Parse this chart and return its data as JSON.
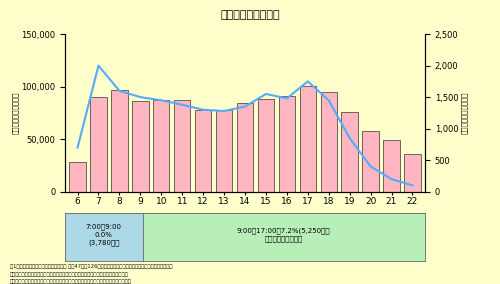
{
  "title": "交通需要と超過需要",
  "background_color": "#FFFFCC",
  "hours": [
    6,
    7,
    8,
    9,
    10,
    11,
    12,
    13,
    14,
    15,
    16,
    17,
    18,
    19,
    20,
    21,
    22
  ],
  "bar_values": [
    28000,
    90000,
    97000,
    86000,
    87000,
    87000,
    78000,
    78000,
    84000,
    88000,
    91000,
    101000,
    95000,
    76000,
    58000,
    49000,
    36000
  ],
  "line_values": [
    700,
    2000,
    1600,
    1500,
    1450,
    1380,
    1300,
    1280,
    1350,
    1550,
    1480,
    1750,
    1450,
    850,
    400,
    200,
    100
  ],
  "bar_color": "#FFB6C1",
  "bar_edge_color": "#333333",
  "line_color": "#55AAFF",
  "ylim_left": [
    0,
    150000
  ],
  "ylim_right": [
    0,
    2500
  ],
  "ylabel_left": "交通需要量（台／時）",
  "ylabel_right": "超過需要量（台／時）",
  "yticks_left": [
    0,
    50000,
    100000,
    150000
  ],
  "yticks_right": [
    0,
    500,
    1000,
    1500,
    2000,
    2500
  ],
  "annotation_box1_text": "7:00～9:00\n0.0%\n(3,780台）",
  "annotation_box2_text": "9:00～17:00　7.2%(5,250台）\n＊（　）内延通台数",
  "note1": "注1）岩手県都交通管制データより集計 市内47地点126方向部での渋滞長の変化から超過台数を算定したもの",
  "note2": "注）交通需要：単位時間に集中（発生）した交通の量（処理されなかった分も含む）",
  "note3": "　　超過需要：処理された交通量に対し、処理が追いつかず渋滞として残った交通の量",
  "box1_color": "#ADD8E6",
  "box2_color": "#B8EEB8"
}
